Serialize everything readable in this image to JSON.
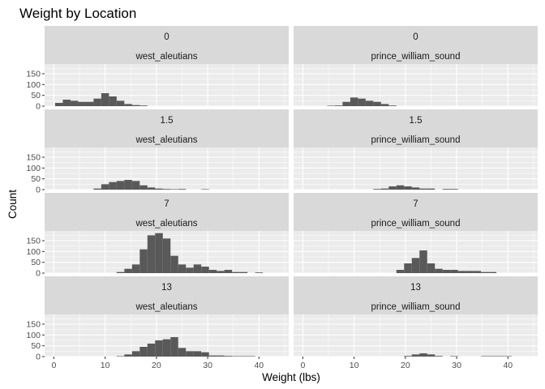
{
  "chart_data": {
    "type": "bar",
    "title": "Weight by Location",
    "xlabel": "Weight (lbs)",
    "ylabel": "Count",
    "xlim": [
      -1.8,
      45.8
    ],
    "ylim": [
      0,
      195
    ],
    "xticks": [
      0,
      10,
      20,
      30,
      40
    ],
    "yticks": [
      0,
      50,
      100,
      150
    ],
    "bin_width": 1.5,
    "grid": true,
    "row_labels": [
      "0",
      "1.5",
      "7",
      "13"
    ],
    "col_labels": [
      "west_aleutians",
      "prince_william_sound"
    ],
    "panels": [
      {
        "row": "0",
        "col": "west_aleutians",
        "bins": [
          [
            1,
            15
          ],
          [
            2.5,
            30
          ],
          [
            4,
            25
          ],
          [
            5.5,
            20
          ],
          [
            7,
            20
          ],
          [
            8.5,
            35
          ],
          [
            10,
            60
          ],
          [
            11.5,
            45
          ],
          [
            13,
            25
          ],
          [
            14.5,
            10
          ],
          [
            16,
            5
          ],
          [
            17.5,
            3
          ]
        ]
      },
      {
        "row": "0",
        "col": "prince_william_sound",
        "bins": [
          [
            5.5,
            2
          ],
          [
            7,
            3
          ],
          [
            8.5,
            20
          ],
          [
            10,
            40
          ],
          [
            11.5,
            35
          ],
          [
            13,
            25
          ],
          [
            14.5,
            20
          ],
          [
            16,
            10
          ],
          [
            17.5,
            3
          ]
        ]
      },
      {
        "row": "1.5",
        "col": "west_aleutians",
        "bins": [
          [
            8.5,
            5
          ],
          [
            10,
            25
          ],
          [
            11.5,
            35
          ],
          [
            13,
            40
          ],
          [
            14.5,
            45
          ],
          [
            16,
            40
          ],
          [
            17.5,
            20
          ],
          [
            19,
            10
          ],
          [
            20.5,
            5
          ],
          [
            22,
            3
          ],
          [
            23.5,
            2
          ],
          [
            25,
            3
          ],
          [
            29.5,
            2
          ]
        ]
      },
      {
        "row": "1.5",
        "col": "prince_william_sound",
        "bins": [
          [
            14.5,
            3
          ],
          [
            16,
            5
          ],
          [
            17.5,
            15
          ],
          [
            19,
            20
          ],
          [
            20.5,
            15
          ],
          [
            22,
            10
          ],
          [
            23.5,
            5
          ],
          [
            25,
            5
          ],
          [
            28,
            3
          ],
          [
            29.5,
            3
          ]
        ]
      },
      {
        "row": "7",
        "col": "west_aleutians",
        "bins": [
          [
            13,
            5
          ],
          [
            14.5,
            20
          ],
          [
            16,
            40
          ],
          [
            17.5,
            110
          ],
          [
            19,
            175
          ],
          [
            20.5,
            185
          ],
          [
            22,
            160
          ],
          [
            23.5,
            80
          ],
          [
            25,
            40
          ],
          [
            26.5,
            25
          ],
          [
            28,
            40
          ],
          [
            29.5,
            30
          ],
          [
            31,
            15
          ],
          [
            32.5,
            10
          ],
          [
            34,
            15
          ],
          [
            35.5,
            5
          ],
          [
            37,
            5
          ],
          [
            40,
            3
          ]
        ]
      },
      {
        "row": "7",
        "col": "prince_william_sound",
        "bins": [
          [
            19,
            15
          ],
          [
            20.5,
            45
          ],
          [
            22,
            70
          ],
          [
            23.5,
            105
          ],
          [
            25,
            45
          ],
          [
            26.5,
            20
          ],
          [
            28,
            15
          ],
          [
            29.5,
            15
          ],
          [
            31,
            10
          ],
          [
            32.5,
            10
          ],
          [
            34,
            10
          ],
          [
            35.5,
            5
          ],
          [
            37,
            5
          ]
        ]
      },
      {
        "row": "13",
        "col": "west_aleutians",
        "bins": [
          [
            13,
            2
          ],
          [
            14.5,
            10
          ],
          [
            16,
            25
          ],
          [
            17.5,
            45
          ],
          [
            19,
            60
          ],
          [
            20.5,
            75
          ],
          [
            22,
            80
          ],
          [
            23.5,
            90
          ],
          [
            25,
            40
          ],
          [
            26.5,
            25
          ],
          [
            28,
            25
          ],
          [
            29.5,
            20
          ],
          [
            31,
            5
          ],
          [
            32.5,
            5
          ],
          [
            34,
            3
          ],
          [
            35.5,
            2
          ],
          [
            37,
            2
          ],
          [
            38.5,
            2
          ]
        ]
      },
      {
        "row": "13",
        "col": "prince_william_sound",
        "bins": [
          [
            20.5,
            3
          ],
          [
            22,
            10
          ],
          [
            23.5,
            15
          ],
          [
            25,
            10
          ],
          [
            26.5,
            3
          ],
          [
            29.5,
            2
          ],
          [
            35.5,
            2
          ],
          [
            37,
            2
          ],
          [
            38.5,
            2
          ],
          [
            40,
            2
          ]
        ]
      }
    ]
  }
}
